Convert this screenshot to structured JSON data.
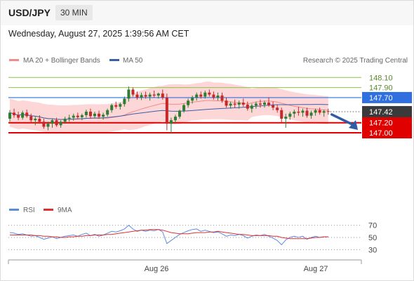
{
  "header": {
    "symbol": "USD/JPY",
    "timeframe": "30 MIN"
  },
  "datetime": "Wednesday, August 27, 2025 1:39:56 AM CET",
  "legend": {
    "bollinger": "MA 20 + Bollinger Bands",
    "ma50": "MA 50",
    "rsi": "RSI",
    "rsi_ma": "9MA"
  },
  "credit": "Research © 2025 Trading Central",
  "colors": {
    "up": "#2e7d32",
    "down": "#c62828",
    "band": "#fdd0d0",
    "ma20": "#f48a8a",
    "ma50": "#3b5ea8",
    "support": "#e00000",
    "resistance": "#2f6fe0",
    "green_level": "#8bc34a",
    "price_tag": "#3a3a3a",
    "rsi_line": "#5b8ce0",
    "rsi_ma_line": "#e03030",
    "arrow": "#2f5ba8"
  },
  "chart_data": [
    {
      "type": "candlestick",
      "title": "USD/JPY 30 MIN",
      "x_labels": [
        "Aug 26",
        "Aug 27"
      ],
      "ylim": [
        145.7,
        148.3
      ],
      "current_price": 147.42,
      "levels": [
        {
          "label": "148.10",
          "value": 148.1,
          "kind": "target"
        },
        {
          "label": "147.90",
          "value": 147.9,
          "kind": "target"
        },
        {
          "label": "147.70",
          "value": 147.7,
          "kind": "resistance"
        },
        {
          "label": "147.20",
          "value": 147.2,
          "kind": "support"
        },
        {
          "label": "147.00",
          "value": 147.0,
          "kind": "support"
        }
      ],
      "price_label": "147.42",
      "ohlc": [
        [
          147.28,
          147.45,
          147.22,
          147.4
        ],
        [
          147.4,
          147.48,
          147.3,
          147.35
        ],
        [
          147.35,
          147.42,
          147.25,
          147.3
        ],
        [
          147.3,
          147.44,
          147.26,
          147.4
        ],
        [
          147.4,
          147.46,
          147.3,
          147.33
        ],
        [
          147.33,
          147.38,
          147.2,
          147.25
        ],
        [
          147.25,
          147.32,
          147.15,
          147.28
        ],
        [
          147.28,
          147.35,
          147.18,
          147.22
        ],
        [
          147.22,
          147.28,
          147.08,
          147.12
        ],
        [
          147.12,
          147.22,
          147.05,
          147.18
        ],
        [
          147.18,
          147.28,
          147.1,
          147.25
        ],
        [
          147.25,
          147.3,
          147.12,
          147.15
        ],
        [
          147.15,
          147.25,
          147.1,
          147.22
        ],
        [
          147.22,
          147.32,
          147.18,
          147.28
        ],
        [
          147.28,
          147.36,
          147.22,
          147.3
        ],
        [
          147.3,
          147.38,
          147.24,
          147.34
        ],
        [
          147.34,
          147.4,
          147.27,
          147.31
        ],
        [
          147.31,
          147.38,
          147.25,
          147.35
        ],
        [
          147.35,
          147.46,
          147.3,
          147.42
        ],
        [
          147.42,
          147.48,
          147.28,
          147.33
        ],
        [
          147.33,
          147.42,
          147.29,
          147.38
        ],
        [
          147.38,
          147.44,
          147.28,
          147.32
        ],
        [
          147.32,
          147.4,
          147.26,
          147.36
        ],
        [
          147.36,
          147.48,
          147.32,
          147.45
        ],
        [
          147.45,
          147.58,
          147.4,
          147.55
        ],
        [
          147.55,
          147.62,
          147.48,
          147.52
        ],
        [
          147.52,
          147.6,
          147.46,
          147.57
        ],
        [
          147.57,
          147.72,
          147.52,
          147.68
        ],
        [
          147.68,
          147.92,
          147.62,
          147.86
        ],
        [
          147.86,
          147.9,
          147.72,
          147.76
        ],
        [
          147.76,
          147.82,
          147.66,
          147.7
        ],
        [
          147.7,
          147.8,
          147.65,
          147.75
        ],
        [
          147.75,
          147.82,
          147.68,
          147.72
        ],
        [
          147.72,
          147.8,
          147.64,
          147.76
        ],
        [
          147.76,
          147.84,
          147.7,
          147.74
        ],
        [
          147.74,
          147.8,
          147.68,
          147.78
        ],
        [
          147.78,
          147.86,
          147.66,
          147.7
        ],
        [
          147.7,
          147.78,
          147.05,
          147.18
        ],
        [
          147.18,
          147.3,
          146.98,
          147.25
        ],
        [
          147.25,
          147.36,
          147.18,
          147.32
        ],
        [
          147.32,
          147.46,
          147.28,
          147.44
        ],
        [
          147.44,
          147.58,
          147.4,
          147.55
        ],
        [
          147.55,
          147.68,
          147.5,
          147.64
        ],
        [
          147.64,
          147.74,
          147.58,
          147.7
        ],
        [
          147.7,
          147.8,
          147.64,
          147.76
        ],
        [
          147.76,
          147.82,
          147.68,
          147.72
        ],
        [
          147.72,
          147.84,
          147.68,
          147.8
        ],
        [
          147.8,
          147.86,
          147.72,
          147.76
        ],
        [
          147.76,
          147.82,
          147.66,
          147.7
        ],
        [
          147.7,
          147.8,
          147.64,
          147.74
        ],
        [
          147.74,
          147.8,
          147.6,
          147.64
        ],
        [
          147.64,
          147.7,
          147.5,
          147.54
        ],
        [
          147.54,
          147.62,
          147.48,
          147.58
        ],
        [
          147.58,
          147.66,
          147.5,
          147.56
        ],
        [
          147.56,
          147.64,
          147.48,
          147.6
        ],
        [
          147.6,
          147.68,
          147.52,
          147.56
        ],
        [
          147.56,
          147.62,
          147.44,
          147.48
        ],
        [
          147.48,
          147.58,
          147.4,
          147.54
        ],
        [
          147.54,
          147.62,
          147.48,
          147.58
        ],
        [
          147.58,
          147.66,
          147.5,
          147.56
        ],
        [
          147.56,
          147.64,
          147.5,
          147.6
        ],
        [
          147.6,
          147.7,
          147.52,
          147.55
        ],
        [
          147.55,
          147.62,
          147.45,
          147.5
        ],
        [
          147.5,
          147.56,
          147.4,
          147.45
        ],
        [
          147.45,
          147.5,
          147.2,
          147.28
        ],
        [
          147.28,
          147.38,
          147.1,
          147.32
        ],
        [
          147.32,
          147.42,
          147.26,
          147.38
        ],
        [
          147.38,
          147.46,
          147.3,
          147.42
        ],
        [
          147.42,
          147.52,
          147.34,
          147.4
        ],
        [
          147.4,
          147.48,
          147.32,
          147.44
        ],
        [
          147.44,
          147.5,
          147.3,
          147.34
        ],
        [
          147.34,
          147.44,
          147.28,
          147.4
        ],
        [
          147.4,
          147.48,
          147.34,
          147.45
        ],
        [
          147.45,
          147.5,
          147.36,
          147.4
        ],
        [
          147.4,
          147.46,
          147.32,
          147.43
        ],
        [
          147.43,
          147.48,
          147.36,
          147.42
        ]
      ]
    },
    {
      "type": "line",
      "title": "RSI",
      "yticks": [
        70,
        50,
        30
      ],
      "ylim": [
        20,
        80
      ],
      "series": [
        {
          "name": "RSI",
          "values": [
            58,
            57,
            55,
            56,
            54,
            52,
            53,
            50,
            47,
            49,
            51,
            48,
            50,
            52,
            53,
            54,
            52,
            55,
            57,
            53,
            55,
            52,
            54,
            57,
            60,
            59,
            61,
            64,
            70,
            64,
            60,
            62,
            60,
            62,
            61,
            63,
            59,
            40,
            45,
            50,
            55,
            58,
            61,
            63,
            64,
            60,
            62,
            60,
            58,
            59,
            56,
            52,
            54,
            53,
            55,
            53,
            49,
            52,
            54,
            53,
            55,
            52,
            49,
            45,
            38,
            46,
            50,
            52,
            50,
            52,
            47,
            50,
            52,
            50,
            51,
            51
          ]
        },
        {
          "name": "9MA",
          "values": [
            54,
            54,
            54,
            54,
            54,
            54,
            53,
            53,
            52,
            52,
            51,
            51,
            50,
            50,
            51,
            51,
            52,
            52,
            53,
            53,
            54,
            54,
            54,
            55,
            55,
            56,
            57,
            58,
            59,
            60,
            61,
            62,
            62,
            63,
            63,
            63,
            62,
            60,
            58,
            57,
            56,
            56,
            56,
            57,
            58,
            58,
            58,
            59,
            59,
            60,
            59,
            58,
            57,
            56,
            55,
            55,
            54,
            53,
            53,
            53,
            53,
            53,
            52,
            52,
            50,
            49,
            48,
            48,
            48,
            48,
            48,
            49,
            50,
            50,
            51,
            51
          ]
        }
      ]
    }
  ]
}
